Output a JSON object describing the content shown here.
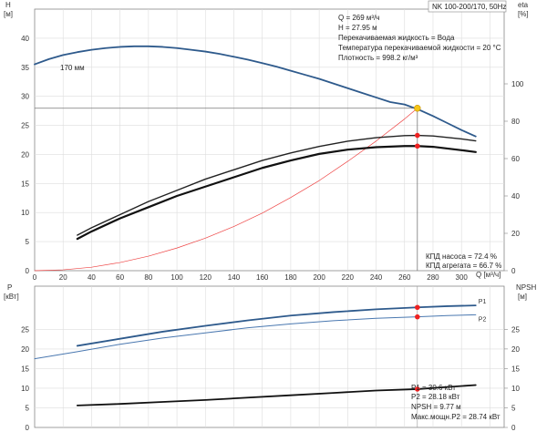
{
  "chart_data": [
    {
      "type": "line",
      "panel": "top",
      "title": "NK 100-200/170, 50Hz",
      "xlabel": "Q [м³/ч]",
      "ylabel_left_name": "H",
      "ylabel_left_unit": "[м]",
      "ylabel_right_name": "eta",
      "ylabel_right_unit": "[%]",
      "xlim": [
        0,
        330
      ],
      "ylim_left": [
        0,
        45
      ],
      "ylim_right": [
        0,
        140
      ],
      "xticks": [
        "0",
        "20",
        "40",
        "60",
        "80",
        "100",
        "120",
        "140",
        "160",
        "180",
        "200",
        "220",
        "240",
        "260",
        "280",
        "300"
      ],
      "yticks_left": [
        "0",
        "5",
        "10",
        "15",
        "20",
        "25",
        "30",
        "35",
        "40"
      ],
      "yticks_right": [
        "0",
        "20",
        "40",
        "60",
        "80",
        "100"
      ],
      "yticks_right_values": [
        0,
        20,
        40,
        60,
        80,
        100
      ],
      "grid": true,
      "curve_label": "170 мм",
      "info": [
        "Q = 269 м³/ч",
        "H = 27.95 м",
        "Перекачиваемая жидкость = Вода",
        "Температура перекачиваемой жидкости = 20 °C",
        "Плотность = 998.2 кг/м³"
      ],
      "eff_info": [
        "КПД насоса = 72.4 %",
        "КПД агрегата = 66.7 %"
      ],
      "duty_point": {
        "x": 269,
        "y": 27.95
      },
      "eff_points": [
        72.4,
        66.7
      ],
      "series": [
        {
          "role": "head-curve",
          "axis": "left",
          "color": "#2e5a8c",
          "x": [
            0,
            10,
            20,
            30,
            40,
            50,
            60,
            70,
            80,
            90,
            100,
            110,
            120,
            130,
            140,
            150,
            160,
            170,
            180,
            190,
            200,
            210,
            220,
            230,
            240,
            250,
            260,
            270,
            280,
            290,
            300,
            310
          ],
          "y": [
            35.5,
            36.4,
            37.1,
            37.6,
            38.0,
            38.3,
            38.5,
            38.6,
            38.6,
            38.5,
            38.3,
            38.0,
            37.7,
            37.3,
            36.8,
            36.3,
            35.7,
            35.1,
            34.4,
            33.7,
            33.0,
            32.2,
            31.4,
            30.6,
            29.8,
            29.0,
            28.6,
            27.7,
            26.6,
            25.4,
            24.2,
            23.1
          ]
        },
        {
          "role": "system-curve",
          "axis": "left",
          "color": "#ee4444",
          "x": [
            0,
            20,
            40,
            60,
            80,
            100,
            120,
            140,
            160,
            180,
            200,
            220,
            240,
            260,
            269
          ],
          "y": [
            0,
            0.15,
            0.6,
            1.4,
            2.5,
            3.9,
            5.6,
            7.6,
            9.9,
            12.6,
            15.5,
            18.8,
            22.3,
            26.1,
            27.95
          ]
        },
        {
          "role": "pump-efficiency",
          "axis": "right",
          "color": "#222222",
          "x": [
            30,
            40,
            60,
            80,
            100,
            120,
            140,
            160,
            180,
            200,
            220,
            240,
            260,
            269,
            280,
            300,
            310
          ],
          "y": [
            19,
            23,
            30,
            37,
            43,
            49,
            54,
            59,
            63,
            66.5,
            69.3,
            71.2,
            72.3,
            72.4,
            72.1,
            70.5,
            69.5
          ]
        },
        {
          "role": "unit-efficiency",
          "axis": "right",
          "color": "#111111",
          "x": [
            30,
            40,
            60,
            80,
            100,
            120,
            140,
            160,
            180,
            200,
            220,
            240,
            260,
            269,
            280,
            300,
            310
          ],
          "y": [
            17,
            21,
            28,
            34,
            40,
            45,
            50,
            55,
            59,
            62.5,
            64.8,
            66.1,
            66.7,
            66.7,
            66.3,
            64.5,
            63.5
          ]
        }
      ]
    },
    {
      "type": "line",
      "panel": "bottom",
      "ylabel_left_name": "P",
      "ylabel_left_unit": "[кВт]",
      "ylabel_right_name": "NPSH",
      "ylabel_right_unit": "[м]",
      "xlim": [
        0,
        330
      ],
      "ylim_left": [
        0,
        36
      ],
      "ylim_right": [
        0,
        36
      ],
      "yticks_left": [
        "0",
        "5",
        "10",
        "15",
        "20",
        "25"
      ],
      "yticks_right": [
        "0",
        "5",
        "10",
        "15",
        "20",
        "25"
      ],
      "grid": true,
      "info": [
        "P1 = 30.6 кВт",
        "P2 = 28.18 кВт",
        "NPSH = 9.77 м",
        "Макс.мощн.P2 = 28.74 кВт"
      ],
      "duty_x": 269,
      "duty_values": [
        30.6,
        28.18,
        9.77
      ],
      "series": [
        {
          "name": "P1",
          "axis": "left",
          "color": "#2e5a8c",
          "x": [
            30,
            60,
            90,
            120,
            150,
            180,
            210,
            240,
            269,
            290,
            310
          ],
          "y": [
            20.8,
            22.6,
            24.4,
            25.9,
            27.3,
            28.5,
            29.4,
            30.1,
            30.6,
            30.9,
            31.1
          ]
        },
        {
          "name": "P2",
          "axis": "left",
          "color": "#4a78b0",
          "x": [
            0,
            30,
            60,
            90,
            120,
            150,
            180,
            210,
            240,
            269,
            290,
            310
          ],
          "y": [
            17.5,
            19.3,
            21.2,
            22.8,
            24.1,
            25.4,
            26.4,
            27.2,
            27.8,
            28.18,
            28.5,
            28.7
          ]
        },
        {
          "role": "npsh",
          "axis": "right",
          "color": "#111111",
          "x": [
            30,
            60,
            90,
            120,
            150,
            180,
            210,
            240,
            269,
            290,
            310
          ],
          "y": [
            5.6,
            6.0,
            6.5,
            7.0,
            7.6,
            8.2,
            8.8,
            9.4,
            9.77,
            10.3,
            10.8
          ]
        }
      ]
    }
  ]
}
